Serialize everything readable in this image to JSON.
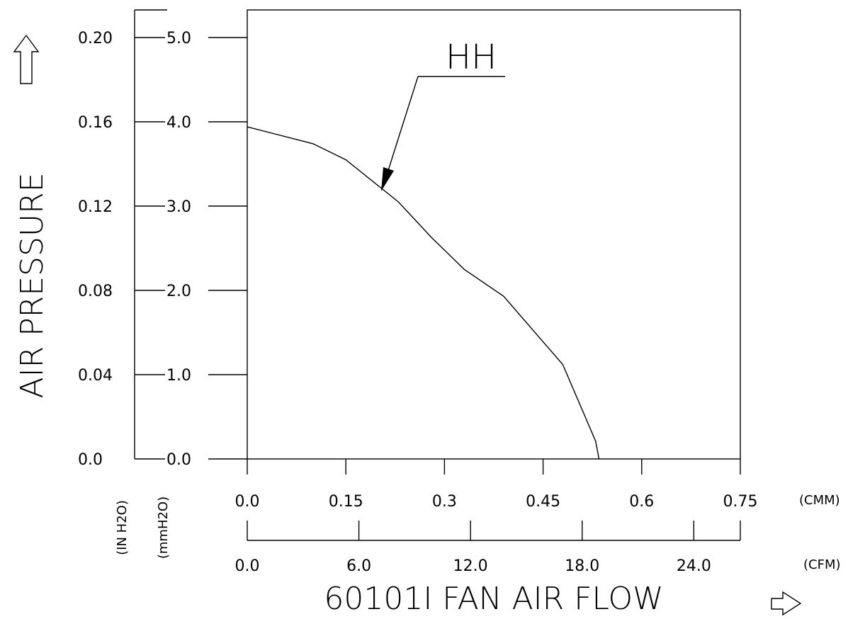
{
  "chart_data": {
    "type": "line",
    "title": "",
    "xlabel": "60101I FAN AIR FLOW",
    "ylabel": "AIR PRESSURE",
    "x_primary": {
      "unit": "(CMM)",
      "ticks": [
        "0.0",
        "0.15",
        "0.3",
        "0.45",
        "0.6",
        "0.75"
      ],
      "range": [
        0,
        0.75
      ]
    },
    "x_secondary": {
      "unit": "(CFM)",
      "ticks": [
        "0.0",
        "6.0",
        "12.0",
        "18.0",
        "24.0"
      ],
      "range": [
        0,
        26.5
      ]
    },
    "y_primary": {
      "unit": "(mmH2O)",
      "ticks": [
        "0.0",
        "1.0",
        "2.0",
        "3.0",
        "4.0",
        "5.0"
      ],
      "range": [
        0,
        5.0
      ]
    },
    "y_secondary": {
      "unit": "(IN H2O)",
      "ticks": [
        "0.0",
        "0.04",
        "0.08",
        "0.12",
        "0.16",
        "0.20"
      ],
      "range": [
        0,
        0.2
      ]
    },
    "series": [
      {
        "name": "HH",
        "points": [
          {
            "x": 0.0,
            "y": 3.94
          },
          {
            "x": 0.1,
            "y": 3.74
          },
          {
            "x": 0.15,
            "y": 3.55
          },
          {
            "x": 0.23,
            "y": 3.05
          },
          {
            "x": 0.28,
            "y": 2.63
          },
          {
            "x": 0.33,
            "y": 2.25
          },
          {
            "x": 0.39,
            "y": 1.93
          },
          {
            "x": 0.48,
            "y": 1.12
          },
          {
            "x": 0.53,
            "y": 0.21
          },
          {
            "x": 0.535,
            "y": 0.0
          }
        ]
      }
    ],
    "annotation": {
      "text": "HH"
    },
    "grid": false
  }
}
